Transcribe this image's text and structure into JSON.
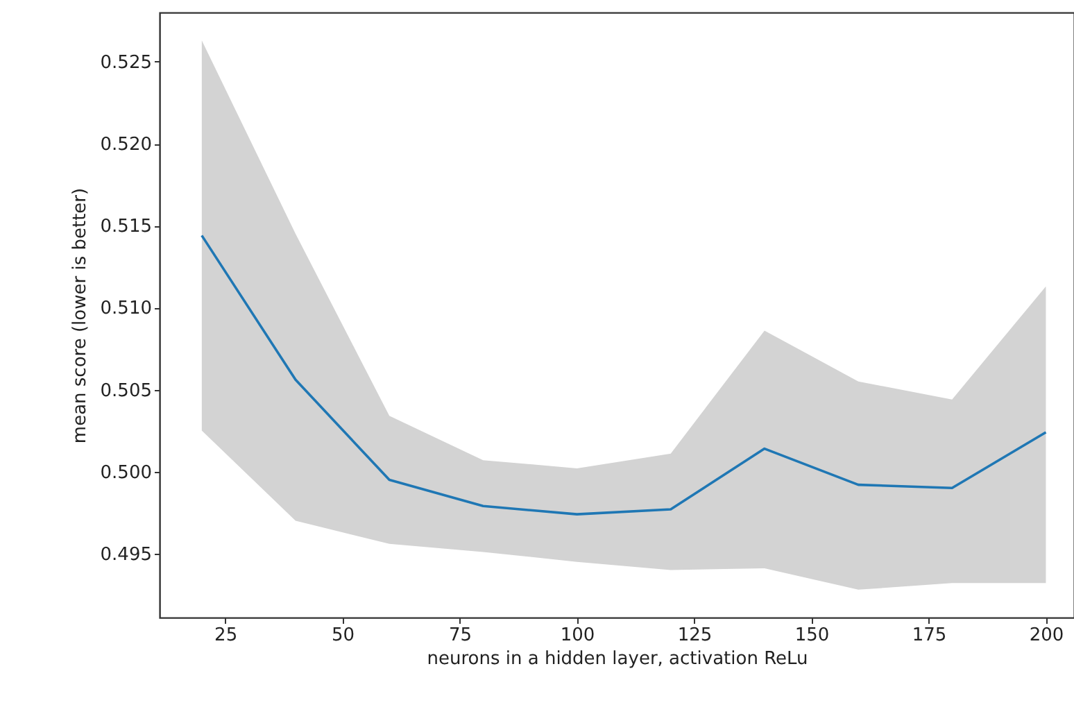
{
  "chart_data": {
    "type": "line",
    "xlabel": "neurons in a hidden layer, activation ReLu",
    "ylabel": "mean score (lower is better)",
    "x": [
      20,
      40,
      60,
      80,
      100,
      120,
      140,
      160,
      180,
      200
    ],
    "series": [
      {
        "color": "#1f77b4",
        "values": [
          0.5144,
          0.5056,
          0.4995,
          0.4979,
          0.4974,
          0.4977,
          0.5014,
          0.4992,
          0.499,
          0.5024
        ],
        "lower": [
          0.5025,
          0.497,
          0.4956,
          0.4951,
          0.4945,
          0.494,
          0.4941,
          0.4928,
          0.4932,
          0.4932
        ],
        "upper": [
          0.5263,
          0.5145,
          0.5034,
          0.5007,
          0.5002,
          0.5011,
          0.5086,
          0.5055,
          0.5044,
          0.5113
        ]
      }
    ],
    "xlim": [
      11,
      206
    ],
    "xticks": [
      25,
      50,
      75,
      100,
      125,
      150,
      175,
      200
    ],
    "ylim": [
      0.4911,
      0.528
    ],
    "yticks": [
      0.495,
      {
        "value": 0.5,
        "label": "0.500"
      },
      {
        "value": 0.505,
        "label": "0.505"
      },
      {
        "value": 0.51,
        "label": "0.510"
      },
      {
        "value": 0.515,
        "label": "0.515"
      },
      {
        "value": 0.52,
        "label": "0.520"
      },
      0.525
    ],
    "grid": false
  }
}
